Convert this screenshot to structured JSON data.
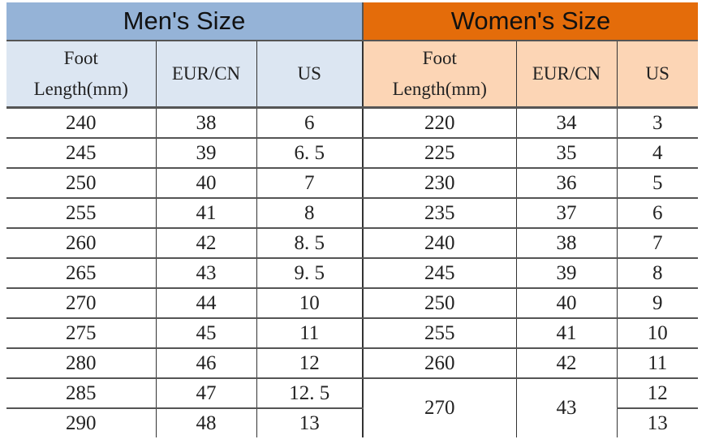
{
  "titles": {
    "men": "Men's Size",
    "women": "Women's Size"
  },
  "headers": {
    "men": [
      "Foot Length(mm)",
      "EUR/CN",
      "US"
    ],
    "women": [
      "Foot Length(mm)",
      "EUR/CN",
      "US"
    ]
  },
  "colors": {
    "men_title": "#95b3d7",
    "men_header": "#dce6f2",
    "women_title": "#e46c0a",
    "women_header": "#fcd5b5"
  },
  "men_rows": [
    [
      "240",
      "38",
      "6"
    ],
    [
      "245",
      "39",
      "6. 5"
    ],
    [
      "250",
      "40",
      "7"
    ],
    [
      "255",
      "41",
      "8"
    ],
    [
      "260",
      "42",
      "8. 5"
    ],
    [
      "265",
      "43",
      "9. 5"
    ],
    [
      "270",
      "44",
      "10"
    ],
    [
      "275",
      "45",
      "11"
    ],
    [
      "280",
      "46",
      "12"
    ],
    [
      "285",
      "47",
      "12. 5"
    ],
    [
      "290",
      "48",
      "13"
    ]
  ],
  "women_rows": [
    [
      "220",
      "34",
      "3"
    ],
    [
      "225",
      "35",
      "4"
    ],
    [
      "230",
      "36",
      "5"
    ],
    [
      "235",
      "37",
      "6"
    ],
    [
      "240",
      "38",
      "7"
    ],
    [
      "245",
      "39",
      "8"
    ],
    [
      "250",
      "40",
      "9"
    ],
    [
      "255",
      "41",
      "10"
    ],
    [
      "260",
      "42",
      "11"
    ],
    [
      "270",
      "43",
      "12"
    ],
    [
      "",
      "",
      "13"
    ]
  ]
}
